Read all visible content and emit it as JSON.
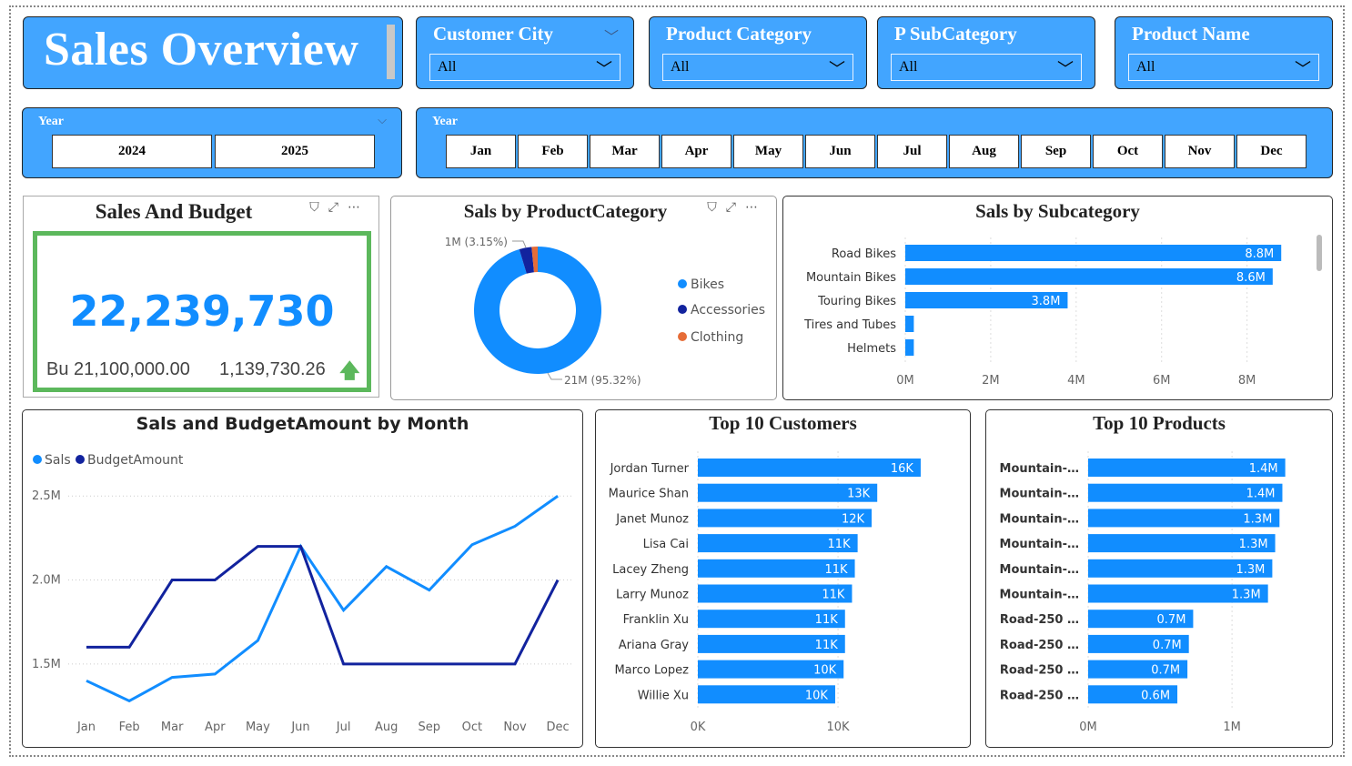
{
  "header": {
    "title": "Sales Overview"
  },
  "slicers": [
    {
      "label": "Customer City",
      "value": "All"
    },
    {
      "label": "Product Category",
      "value": "All"
    },
    {
      "label": "P SubCategory",
      "value": "All"
    },
    {
      "label": "Product Name",
      "value": "All"
    }
  ],
  "year_slicer": {
    "label": "Year",
    "options": [
      "2024",
      "2025"
    ]
  },
  "month_slicer": {
    "label": "Year",
    "options": [
      "Jan",
      "Feb",
      "Mar",
      "Apr",
      "May",
      "Jun",
      "Jul",
      "Aug",
      "Sep",
      "Oct",
      "Nov",
      "Dec"
    ]
  },
  "kpi": {
    "title": "Sales And Budget",
    "value": "22,239,730",
    "budget": "Bu 21,100,000.00",
    "variance": "1,139,730.26",
    "good_color": "#5CB85C"
  },
  "chart_data": [
    {
      "type": "pie",
      "title": "Sals by ProductCategory",
      "categories": [
        "Bikes",
        "Accessories",
        "Clothing"
      ],
      "values": [
        95.32,
        3.15,
        1.53
      ],
      "colors": [
        "#118DFF",
        "#12239E",
        "#E66C37"
      ],
      "labels": [
        "21M (95.32%)",
        "1M (3.15%)"
      ],
      "legend": "right"
    },
    {
      "type": "bar",
      "title": "Sals by Subcategory",
      "categories": [
        "Road Bikes",
        "Mountain Bikes",
        "Touring Bikes",
        "Tires and Tubes",
        "Helmets"
      ],
      "values": [
        8.8,
        8.6,
        3.8,
        0.2,
        0.2
      ],
      "value_labels": [
        "8.8M",
        "8.6M",
        "3.8M",
        "",
        ""
      ],
      "xticks": [
        "0M",
        "2M",
        "4M",
        "6M",
        "8M"
      ],
      "xlim": [
        0,
        9.2
      ]
    },
    {
      "type": "line",
      "title": "Sals and BudgetAmount by Month",
      "x": [
        "Jan",
        "Feb",
        "Mar",
        "Apr",
        "May",
        "Jun",
        "Jul",
        "Aug",
        "Sep",
        "Oct",
        "Nov",
        "Dec"
      ],
      "series": [
        {
          "name": "Sals",
          "color": "#118DFF",
          "values": [
            1.4,
            1.28,
            1.42,
            1.44,
            1.64,
            2.2,
            1.82,
            2.08,
            1.94,
            2.21,
            2.32,
            2.5
          ]
        },
        {
          "name": "BudgetAmount",
          "color": "#12239E",
          "values": [
            1.6,
            1.6,
            2.0,
            2.0,
            2.2,
            2.2,
            1.5,
            1.5,
            1.5,
            1.5,
            1.5,
            2.0
          ]
        }
      ],
      "yticks": [
        "1.5M",
        "2.0M",
        "2.5M"
      ],
      "ytick_values": [
        1.5,
        2.0,
        2.5
      ],
      "ylim": [
        1.25,
        2.55
      ],
      "legend": "top-left"
    },
    {
      "type": "bar",
      "title": "Top 10 Customers",
      "categories": [
        "Jordan Turner",
        "Maurice Shan",
        "Janet Munoz",
        "Lisa Cai",
        "Lacey Zheng",
        "Larry Munoz",
        "Franklin Xu",
        "Ariana Gray",
        "Marco Lopez",
        "Willie Xu"
      ],
      "values": [
        15.9,
        12.8,
        12.4,
        11.4,
        11.2,
        11.0,
        10.5,
        10.5,
        10.4,
        9.8
      ],
      "value_labels": [
        "16K",
        "13K",
        "12K",
        "11K",
        "11K",
        "11K",
        "11K",
        "11K",
        "10K",
        "10K"
      ],
      "xticks": [
        "0K",
        "10K"
      ],
      "xlim": [
        0,
        18.5
      ]
    },
    {
      "type": "bar",
      "title": "Top 10 Products",
      "categories": [
        "Mountain-…",
        "Mountain-…",
        "Mountain-…",
        "Mountain-…",
        "Mountain-…",
        "Mountain-…",
        "Road-250 …",
        "Road-250 …",
        "Road-250 …",
        "Road-250 …"
      ],
      "values": [
        1.37,
        1.35,
        1.33,
        1.3,
        1.28,
        1.25,
        0.73,
        0.7,
        0.69,
        0.62
      ],
      "value_labels": [
        "1.4M",
        "1.4M",
        "1.3M",
        "1.3M",
        "1.3M",
        "1.3M",
        "0.7M",
        "0.7M",
        "0.7M",
        "0.6M"
      ],
      "xticks": [
        "0M",
        "1M"
      ],
      "xlim": [
        0,
        1.6
      ]
    }
  ]
}
